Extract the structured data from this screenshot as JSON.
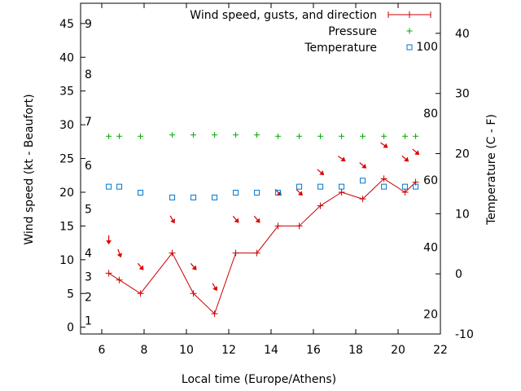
{
  "chart_data": {
    "type": "line",
    "xlabel": "Local time (Europe/Athens)",
    "ylabel": "Wind speed (kt - Beaufort)",
    "y2label": "Temperature (C - F)",
    "xlim": [
      5,
      22
    ],
    "xticks": [
      "6",
      "8",
      "10",
      "12",
      "14",
      "16",
      "18",
      "20",
      "22"
    ],
    "ylim": [
      -1,
      48
    ],
    "yticks": [
      "0",
      "5",
      "10",
      "15",
      "20",
      "25",
      "30",
      "35",
      "40",
      "45"
    ],
    "y2lim": [
      -10,
      45
    ],
    "y2ticks": [
      "-10",
      "0",
      "10",
      "20",
      "30",
      "40"
    ],
    "beaufort_labels": [
      {
        "text": "1",
        "kt": 1
      },
      {
        "text": "2",
        "kt": 4.5
      },
      {
        "text": "3",
        "kt": 7.5
      },
      {
        "text": "4",
        "kt": 11
      },
      {
        "text": "5",
        "kt": 17.5
      },
      {
        "text": "6",
        "kt": 24
      },
      {
        "text": "7",
        "kt": 30.5
      },
      {
        "text": "8",
        "kt": 37.5
      },
      {
        "text": "9",
        "kt": 45
      }
    ],
    "fahrenheit_labels": [
      {
        "text": "20",
        "c": -6.7
      },
      {
        "text": "40",
        "c": 4.4
      },
      {
        "text": "60",
        "c": 15.6
      },
      {
        "text": "80",
        "c": 26.7
      },
      {
        "text": "100",
        "c": 37.8
      }
    ],
    "legend_position": "top-right",
    "series": [
      {
        "name": "Wind speed, gusts, and direction",
        "color": "#cc0000",
        "x": [
          6.33,
          6.83,
          7.83,
          9.33,
          10.33,
          11.33,
          12.33,
          13.33,
          14.33,
          15.33,
          16.33,
          17.33,
          18.33,
          19.33,
          20.33,
          20.83
        ],
        "values": [
          8,
          7,
          5,
          11,
          5,
          2,
          11,
          11,
          15,
          15,
          18,
          20,
          19,
          22,
          20,
          21.5
        ],
        "direction_arrows_x": [
          6.33,
          6.83,
          7.83,
          9.33,
          10.33,
          11.33,
          12.33,
          13.33,
          14.33,
          15.33,
          16.33,
          17.33,
          18.33,
          19.33,
          20.33,
          20.83
        ],
        "direction_arrows_kt": [
          13,
          11,
          9,
          16,
          9,
          6,
          16,
          16,
          20,
          20,
          23,
          25,
          24,
          27,
          25,
          26
        ]
      },
      {
        "name": "Pressure",
        "color": "#00aa00",
        "x": [
          6.33,
          6.83,
          7.83,
          9.33,
          10.33,
          11.33,
          12.33,
          13.33,
          14.33,
          15.33,
          16.33,
          17.33,
          18.33,
          19.33,
          20.33,
          20.83
        ],
        "values": [
          28.3,
          28.3,
          28.3,
          28.5,
          28.5,
          28.5,
          28.5,
          28.5,
          28.3,
          28.3,
          28.3,
          28.3,
          28.3,
          28.3,
          28.3,
          28.3
        ]
      },
      {
        "name": "Temperature",
        "color": "#0077cc",
        "axis": "right",
        "x": [
          6.33,
          6.83,
          7.83,
          9.33,
          10.33,
          11.33,
          12.33,
          13.33,
          14.33,
          15.33,
          16.33,
          17.33,
          18.33,
          19.33,
          20.33,
          20.83
        ],
        "values": [
          14.5,
          14.5,
          13.5,
          12.7,
          12.7,
          12.7,
          13.5,
          13.5,
          13.5,
          14.5,
          14.5,
          14.5,
          15.5,
          14.5,
          14.5,
          14.5
        ]
      }
    ]
  }
}
